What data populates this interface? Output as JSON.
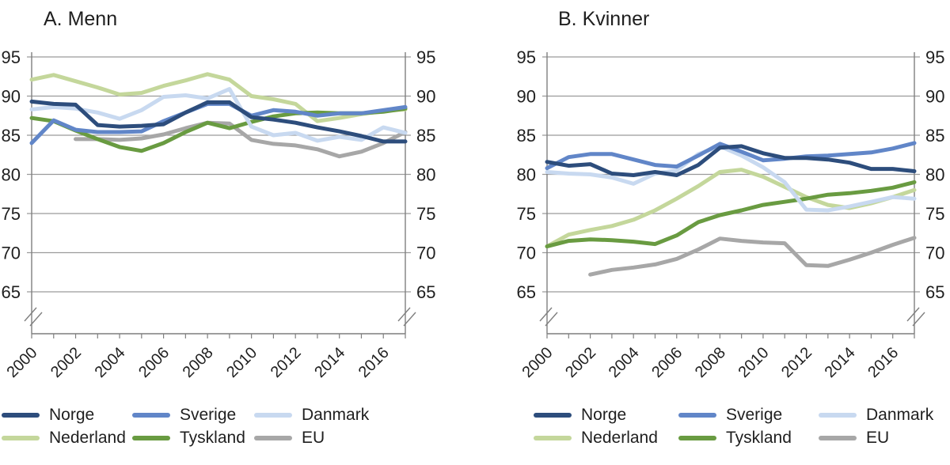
{
  "figure": {
    "panel_a_title": "A. Menn",
    "panel_b_title": "B. Kvinner"
  },
  "chart_data": [
    {
      "type": "line",
      "title": "A. Menn",
      "x": [
        2000,
        2001,
        2002,
        2003,
        2004,
        2005,
        2006,
        2007,
        2008,
        2009,
        2010,
        2011,
        2012,
        2013,
        2014,
        2015,
        2016,
        2017
      ],
      "x_tick_labels": [
        "2000",
        "2002",
        "2004",
        "2006",
        "2008",
        "2010",
        "2012",
        "2014",
        "2016"
      ],
      "y_ticks": [
        95,
        90,
        85,
        80,
        75,
        70,
        65
      ],
      "ylim": [
        65,
        95
      ],
      "axis_break": true,
      "grid": true,
      "dual_y_labels": true,
      "legend_position": "bottom",
      "series": [
        {
          "name": "Norge",
          "color": "#2d4d7c",
          "values": [
            89.3,
            89.0,
            88.9,
            86.3,
            86.1,
            86.2,
            86.4,
            87.9,
            89.2,
            89.2,
            87.3,
            87.0,
            86.6,
            86.0,
            85.5,
            84.9,
            84.2,
            84.2
          ]
        },
        {
          "name": "Sverige",
          "color": "#6186c8",
          "values": [
            84.0,
            86.9,
            85.7,
            85.4,
            85.4,
            85.5,
            86.8,
            87.9,
            89.0,
            89.0,
            87.5,
            88.2,
            88.0,
            87.5,
            87.8,
            87.8,
            88.2,
            88.6
          ]
        },
        {
          "name": "Danmark",
          "color": "#c8d9f0",
          "values": [
            88.3,
            88.6,
            88.4,
            87.9,
            87.1,
            88.2,
            89.9,
            90.1,
            89.7,
            90.9,
            86.1,
            85.0,
            85.3,
            84.3,
            84.8,
            84.4,
            86.0,
            85.3
          ]
        },
        {
          "name": "Nederland",
          "color": "#c4d79b",
          "values": [
            92.1,
            92.7,
            91.9,
            91.1,
            90.2,
            90.4,
            91.3,
            92.0,
            92.8,
            92.1,
            90.0,
            89.6,
            89.0,
            86.8,
            87.2,
            87.7,
            88.1,
            88.3
          ]
        },
        {
          "name": "Tyskland",
          "color": "#699b41",
          "values": [
            87.2,
            86.8,
            85.6,
            84.5,
            83.5,
            83.0,
            84.0,
            85.4,
            86.6,
            85.9,
            86.7,
            87.4,
            87.8,
            87.9,
            87.8,
            87.8,
            88.0,
            88.4
          ]
        },
        {
          "name": "EU",
          "color": "#a7a7a7",
          "values": [
            null,
            null,
            84.5,
            84.5,
            84.4,
            84.6,
            85.1,
            85.9,
            86.6,
            86.5,
            84.4,
            83.9,
            83.7,
            83.2,
            82.3,
            82.9,
            84.0,
            85.4
          ]
        }
      ]
    },
    {
      "type": "line",
      "title": "B. Kvinner",
      "x": [
        2000,
        2001,
        2002,
        2003,
        2004,
        2005,
        2006,
        2007,
        2008,
        2009,
        2010,
        2011,
        2012,
        2013,
        2014,
        2015,
        2016,
        2017
      ],
      "x_tick_labels": [
        "2000",
        "2002",
        "2004",
        "2006",
        "2008",
        "2010",
        "2012",
        "2014",
        "2016"
      ],
      "y_ticks": [
        95,
        90,
        85,
        80,
        75,
        70,
        65
      ],
      "ylim": [
        65,
        95
      ],
      "axis_break": true,
      "grid": true,
      "dual_y_labels": true,
      "legend_position": "bottom",
      "series": [
        {
          "name": "Norge",
          "color": "#2d4d7c",
          "values": [
            81.6,
            81.1,
            81.3,
            80.1,
            79.9,
            80.3,
            79.9,
            81.2,
            83.4,
            83.6,
            82.7,
            82.1,
            82.1,
            81.9,
            81.5,
            80.7,
            80.7,
            80.4
          ]
        },
        {
          "name": "Sverige",
          "color": "#6186c8",
          "values": [
            80.8,
            82.2,
            82.6,
            82.6,
            81.9,
            81.2,
            81.0,
            82.4,
            83.9,
            82.9,
            81.8,
            82.0,
            82.3,
            82.4,
            82.6,
            82.8,
            83.3,
            84.0
          ]
        },
        {
          "name": "Danmark",
          "color": "#c8d9f0",
          "values": [
            80.3,
            80.1,
            80.0,
            79.6,
            78.8,
            80.1,
            80.5,
            82.6,
            83.6,
            82.4,
            80.9,
            79.0,
            75.5,
            75.4,
            75.9,
            76.5,
            77.1,
            76.9
          ]
        },
        {
          "name": "Nederland",
          "color": "#c4d79b",
          "values": [
            70.8,
            72.3,
            72.9,
            73.4,
            74.2,
            75.4,
            76.9,
            78.5,
            80.3,
            80.6,
            79.7,
            78.4,
            77.1,
            76.1,
            75.7,
            76.3,
            77.1,
            78.0
          ]
        },
        {
          "name": "Tyskland",
          "color": "#699b41",
          "values": [
            70.8,
            71.5,
            71.7,
            71.6,
            71.4,
            71.1,
            72.2,
            73.9,
            74.8,
            75.4,
            76.1,
            76.5,
            76.9,
            77.4,
            77.6,
            77.9,
            78.3,
            79.0
          ]
        },
        {
          "name": "EU",
          "color": "#a7a7a7",
          "values": [
            null,
            null,
            67.2,
            67.8,
            68.1,
            68.5,
            69.2,
            70.4,
            71.8,
            71.5,
            71.3,
            71.2,
            68.4,
            68.3,
            69.1,
            70.0,
            71.0,
            71.9
          ]
        }
      ]
    }
  ]
}
